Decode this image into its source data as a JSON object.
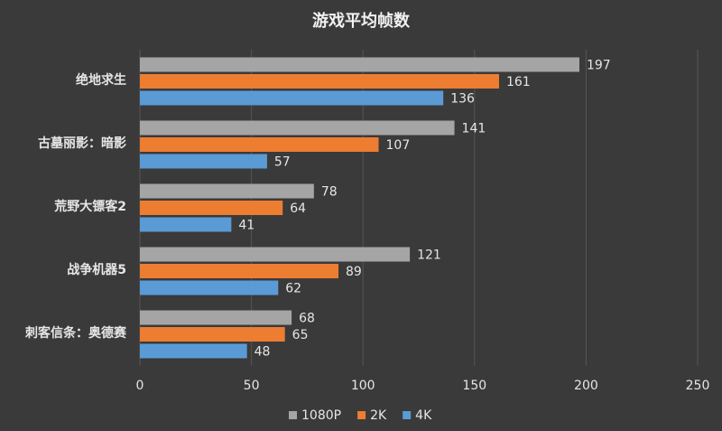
{
  "chart_data": {
    "type": "bar",
    "title": "游戏平均帧数",
    "categories": [
      "绝地求生",
      "古墓丽影：暗影",
      "荒野大镖客2",
      "战争机器5",
      "刺客信条：奥德赛"
    ],
    "series": [
      {
        "name": "1080P",
        "color": "#a5a5a5",
        "values": [
          197,
          141,
          78,
          121,
          68
        ]
      },
      {
        "name": "2K",
        "color": "#ed7d31",
        "values": [
          161,
          107,
          64,
          89,
          65
        ]
      },
      {
        "name": "4K",
        "color": "#5b9bd5",
        "values": [
          136,
          57,
          41,
          62,
          48
        ]
      }
    ],
    "xlim": [
      0,
      250
    ],
    "xticks": [
      0,
      50,
      100,
      150,
      200,
      250
    ],
    "grid": true
  }
}
